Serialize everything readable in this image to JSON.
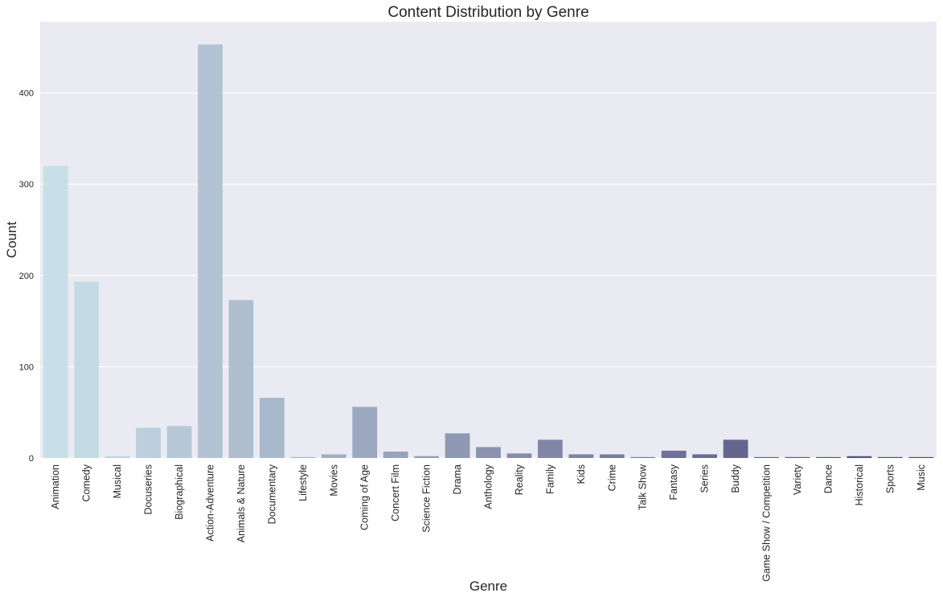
{
  "chart_data": {
    "type": "bar",
    "title": "Content Distribution by Genre",
    "xlabel": "Genre",
    "ylabel": "Count",
    "ylim": [
      0,
      478
    ],
    "yticks": [
      0,
      100,
      200,
      300,
      400
    ],
    "grid": true,
    "categories": [
      "Animation",
      "Comedy",
      "Musical",
      "Docuseries",
      "Biographical",
      "Action-Adventure",
      "Animals & Nature",
      "Documentary",
      "Lifestyle",
      "Movies",
      "Coming of Age",
      "Concert Film",
      "Science Fiction",
      "Drama",
      "Anthology",
      "Reality",
      "Family",
      "Kids",
      "Crime",
      "Talk Show",
      "Fantasy",
      "Series",
      "Buddy",
      "Game Show / Competition",
      "Variety",
      "Dance",
      "Historical",
      "Sports",
      "Music"
    ],
    "values": [
      320,
      193,
      2,
      33,
      35,
      453,
      173,
      66,
      1,
      4,
      56,
      7,
      2,
      27,
      12,
      5,
      20,
      4,
      4,
      1,
      8,
      4,
      20,
      1,
      1,
      1,
      2,
      1,
      1
    ],
    "colors": {
      "background": "#eaeaf2",
      "grid": "#ffffff",
      "palette_start": "#c9dfe8",
      "palette_end": "#4a4574"
    }
  }
}
